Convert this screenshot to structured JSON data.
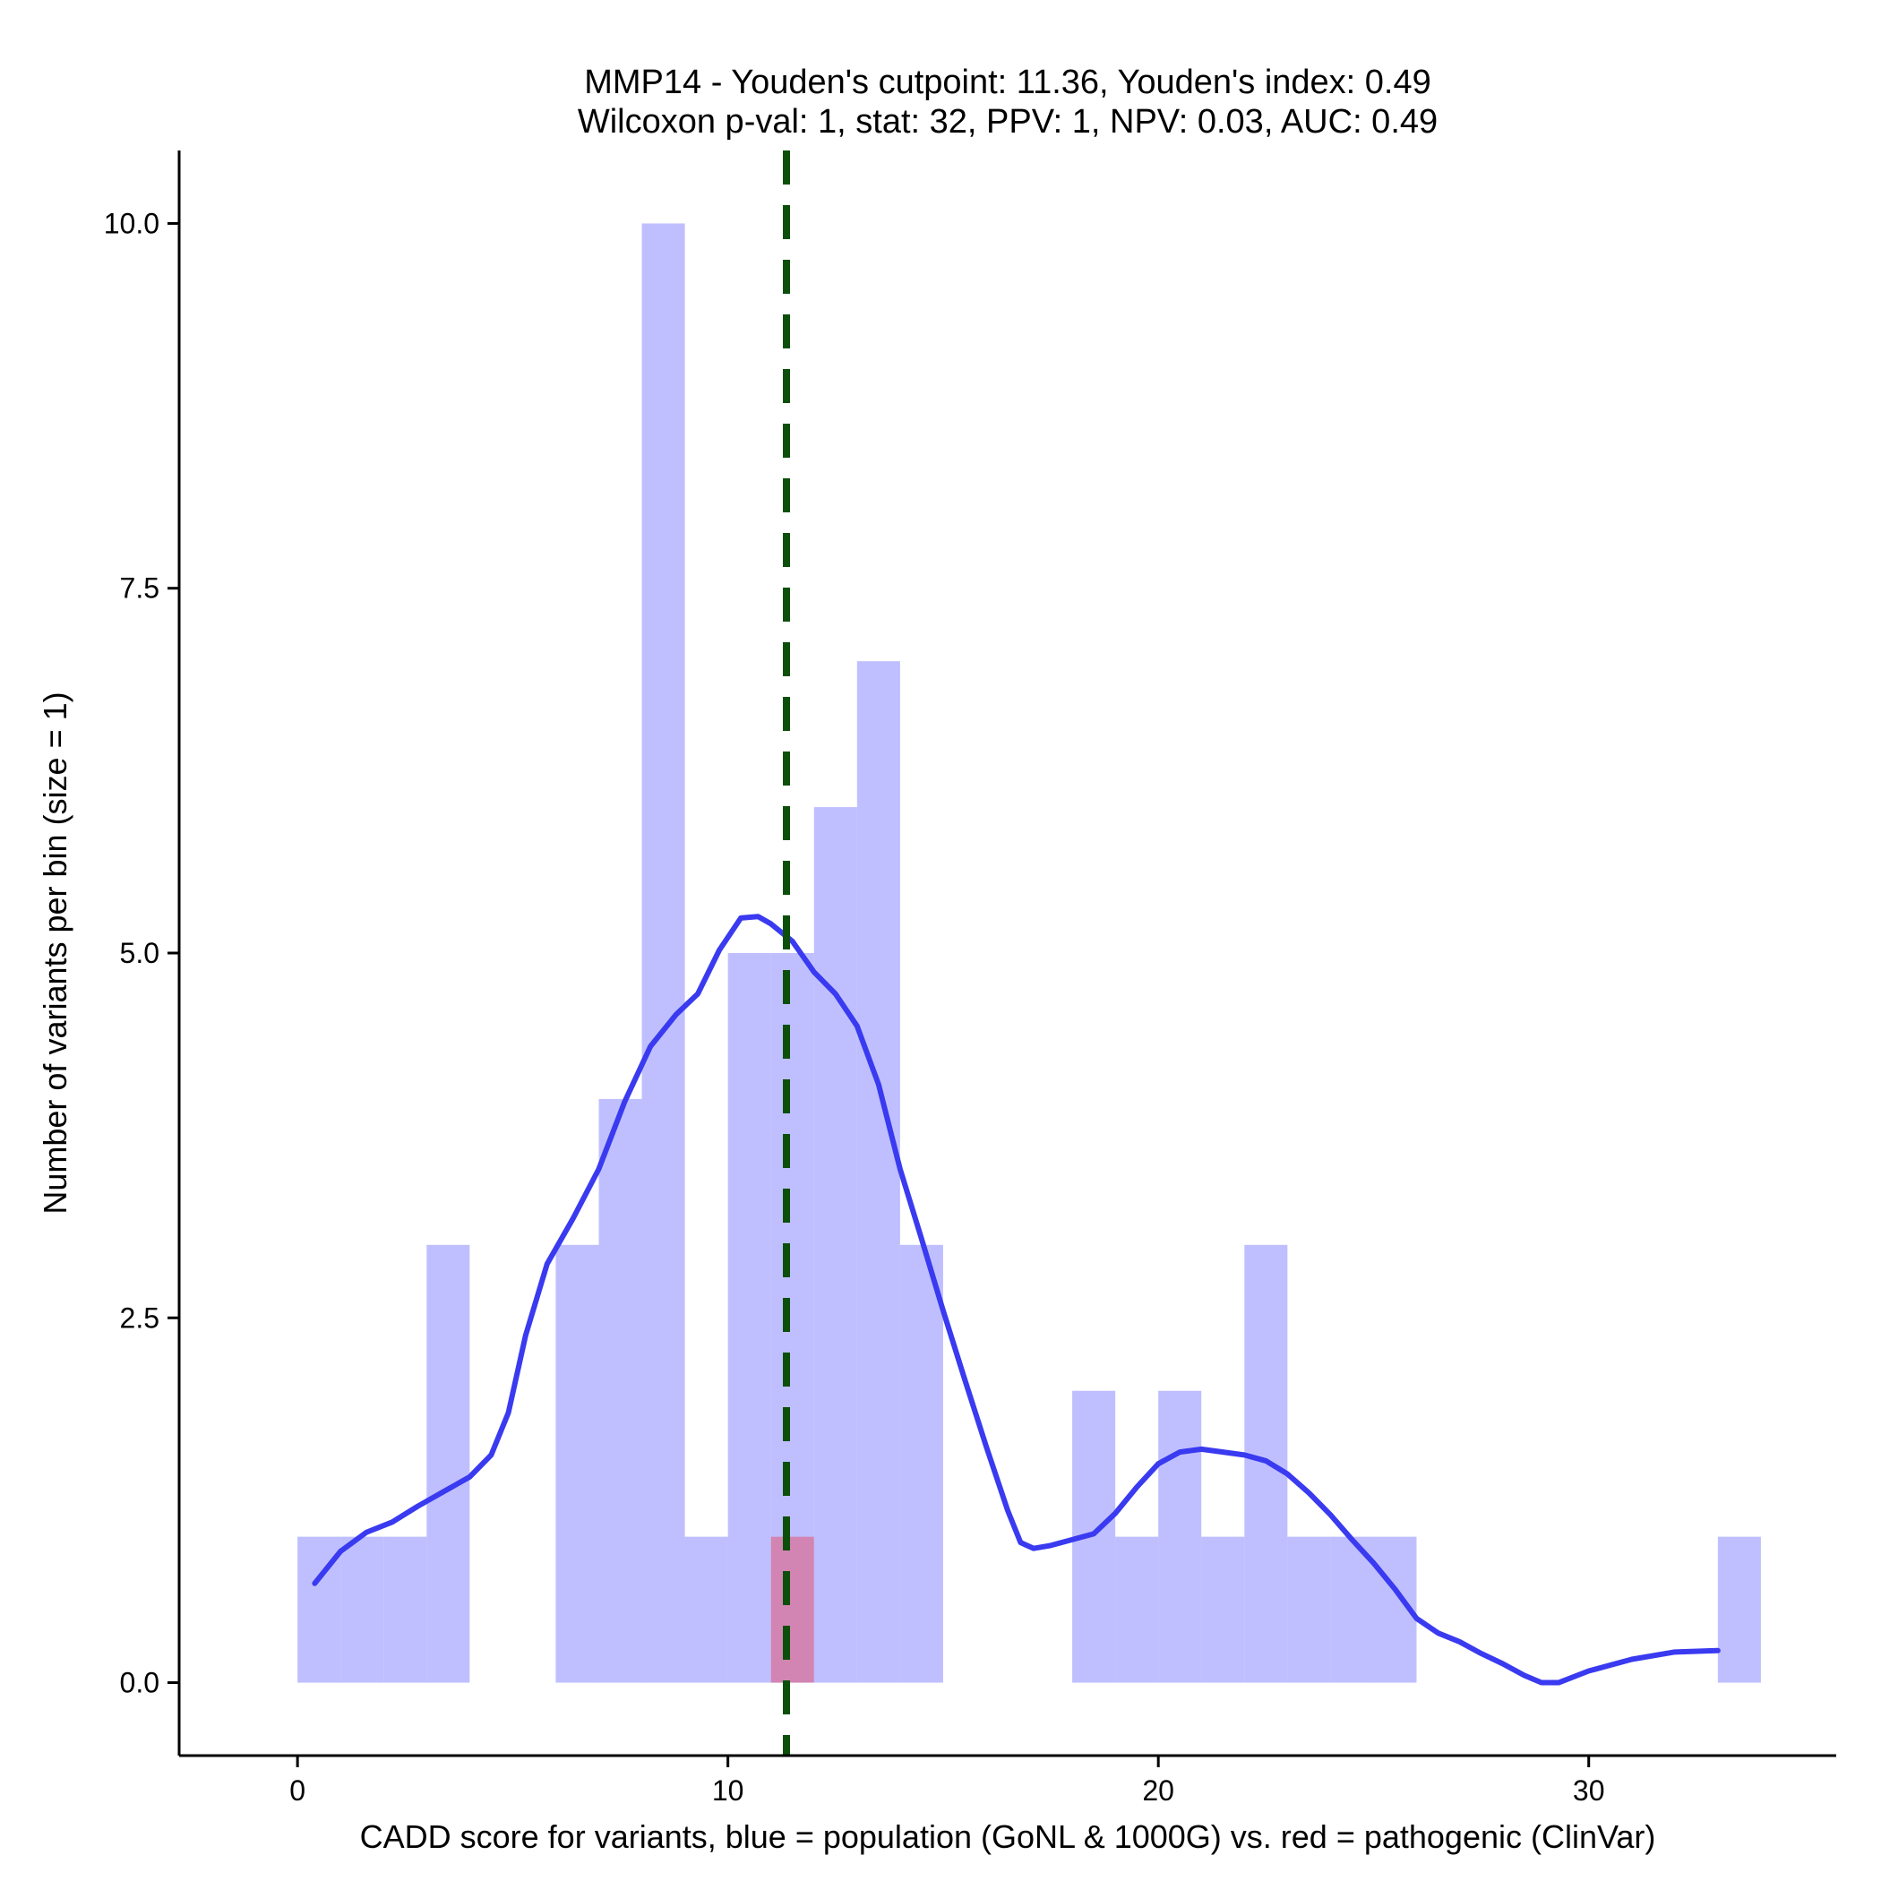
{
  "chart_data": {
    "type": "bar",
    "title": "MMP14 - Youden's cutpoint: 11.36, Youden's index: 0.49",
    "subtitle": "Wilcoxon p-val: 1, stat: 32, PPV: 1, NPV: 0.03, AUC: 0.49",
    "xlabel": "CADD score for variants, blue = population (GoNL & 1000G) vs. red = pathogenic (ClinVar)",
    "ylabel": "Number of variants per bin (size = 1)",
    "xlim": [
      -2.75,
      35.75
    ],
    "ylim": [
      -0.5,
      10.5
    ],
    "x_ticks": [
      0,
      10,
      20,
      30
    ],
    "x_tick_labels": [
      "0",
      "10",
      "20",
      "30"
    ],
    "y_ticks": [
      0,
      2.5,
      5,
      7.5,
      10
    ],
    "y_tick_labels": [
      "0.0",
      "2.5",
      "5.0",
      "7.5",
      "10.0"
    ],
    "bin_size": 1,
    "series": [
      {
        "name": "population (GoNL & 1000G)",
        "color": "#8080ff",
        "opacity": 0.5,
        "bins": [
          {
            "x0": 0,
            "x1": 1,
            "count": 1
          },
          {
            "x0": 1,
            "x1": 2,
            "count": 1
          },
          {
            "x0": 2,
            "x1": 3,
            "count": 1
          },
          {
            "x0": 3,
            "x1": 4,
            "count": 3
          },
          {
            "x0": 6,
            "x1": 7,
            "count": 3
          },
          {
            "x0": 7,
            "x1": 8,
            "count": 4
          },
          {
            "x0": 8,
            "x1": 9,
            "count": 10
          },
          {
            "x0": 9,
            "x1": 10,
            "count": 1
          },
          {
            "x0": 10,
            "x1": 11,
            "count": 5
          },
          {
            "x0": 11,
            "x1": 12,
            "count": 5
          },
          {
            "x0": 12,
            "x1": 13,
            "count": 6
          },
          {
            "x0": 13,
            "x1": 14,
            "count": 7
          },
          {
            "x0": 14,
            "x1": 15,
            "count": 3
          },
          {
            "x0": 18,
            "x1": 19,
            "count": 2
          },
          {
            "x0": 19,
            "x1": 20,
            "count": 1
          },
          {
            "x0": 20,
            "x1": 21,
            "count": 2
          },
          {
            "x0": 21,
            "x1": 22,
            "count": 1
          },
          {
            "x0": 22,
            "x1": 23,
            "count": 3
          },
          {
            "x0": 23,
            "x1": 24,
            "count": 1
          },
          {
            "x0": 24,
            "x1": 25,
            "count": 1
          },
          {
            "x0": 25,
            "x1": 26,
            "count": 1
          },
          {
            "x0": 33,
            "x1": 34,
            "count": 1
          }
        ]
      },
      {
        "name": "pathogenic (ClinVar)",
        "color": "#ff0000",
        "opacity": 0.3,
        "bins": [
          {
            "x0": 11,
            "x1": 12,
            "count": 1
          }
        ]
      }
    ],
    "density_curve": {
      "name": "population density",
      "color": "#3a3af0",
      "x": [
        0.4,
        1,
        1.6,
        2.2,
        2.8,
        3.4,
        4.0,
        4.5,
        4.9,
        5.3,
        5.8,
        6.4,
        7.0,
        7.6,
        8.2,
        8.8,
        9.3,
        9.8,
        10.3,
        10.7,
        11.0,
        11.5,
        12.0,
        12.5,
        13.0,
        13.5,
        14.0,
        14.5,
        15.0,
        15.5,
        16.0,
        16.5,
        16.8,
        17.1,
        17.5,
        18.0,
        18.5,
        19.0,
        19.5,
        20.0,
        20.5,
        21.0,
        21.5,
        22.0,
        22.5,
        23.0,
        23.5,
        24.0,
        24.5,
        25.0,
        25.5,
        26.0,
        26.5,
        27.0,
        27.5,
        28.0,
        28.5,
        28.9,
        29.3,
        30.0,
        31.0,
        32.0,
        33.0
      ],
      "y": [
        0.68,
        0.9,
        1.03,
        1.1,
        1.21,
        1.31,
        1.41,
        1.56,
        1.85,
        2.38,
        2.87,
        3.18,
        3.52,
        3.98,
        4.36,
        4.58,
        4.72,
        5.02,
        5.24,
        5.25,
        5.2,
        5.08,
        4.87,
        4.72,
        4.5,
        4.1,
        3.52,
        3.04,
        2.55,
        2.08,
        1.62,
        1.18,
        0.96,
        0.92,
        0.94,
        0.98,
        1.02,
        1.16,
        1.34,
        1.5,
        1.58,
        1.6,
        1.58,
        1.56,
        1.52,
        1.43,
        1.3,
        1.15,
        0.98,
        0.82,
        0.64,
        0.44,
        0.34,
        0.28,
        0.2,
        0.13,
        0.05,
        0.0,
        0.0,
        0.08,
        0.16,
        0.21,
        0.22
      ]
    },
    "cutpoint_line": {
      "x": 11.36,
      "color": "#0b4f0b",
      "style": "dashed"
    }
  }
}
